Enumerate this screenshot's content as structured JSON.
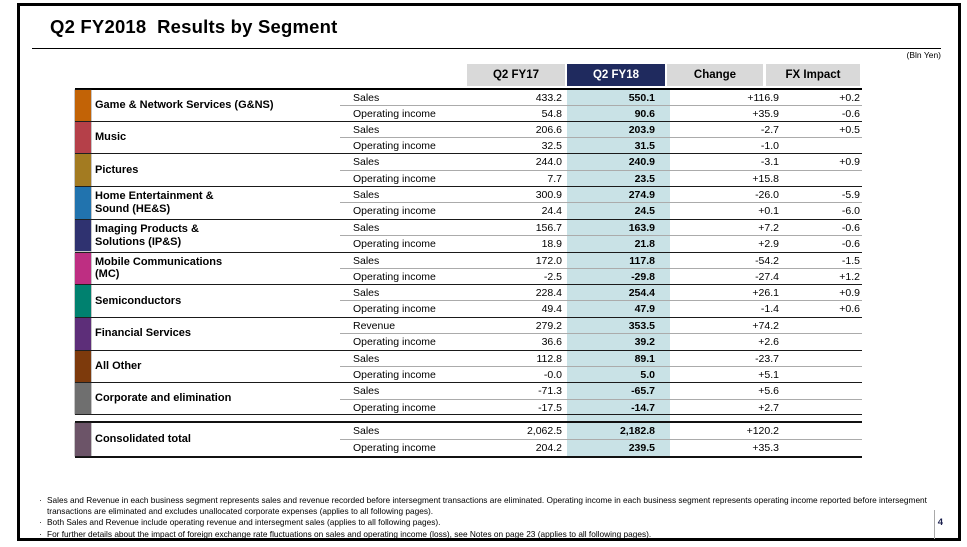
{
  "page": {
    "title": "Q2 FY2018  Results by Segment",
    "unit_label": "(Bln Yen)",
    "page_number": "4",
    "bullet": "·"
  },
  "table": {
    "columns": [
      "Q2 FY17",
      "Q2 FY18",
      "Change",
      "FX Impact"
    ],
    "header_default_color": "#D9D9D9",
    "header_highlight_color": "#1F2A5E",
    "highlight_color": "#C9E2E6",
    "segments": [
      {
        "name": "Game & Network Services (G&NS)",
        "color": "#C26306",
        "rows": [
          {
            "label": "Sales",
            "values": [
              "433.2",
              "550.1",
              "+116.9",
              "+0.2"
            ]
          },
          {
            "label": "Operating income",
            "values": [
              "54.8",
              "90.6",
              "+35.9",
              "-0.6"
            ]
          }
        ]
      },
      {
        "name": "Music",
        "color": "#B54049",
        "rows": [
          {
            "label": "Sales",
            "values": [
              "206.6",
              "203.9",
              "-2.7",
              "+0.5"
            ]
          },
          {
            "label": "Operating income",
            "values": [
              "32.5",
              "31.5",
              "-1.0",
              ""
            ]
          }
        ]
      },
      {
        "name": "Pictures",
        "color": "#A37B21",
        "rows": [
          {
            "label": "Sales",
            "values": [
              "244.0",
              "240.9",
              "-3.1",
              "+0.9"
            ]
          },
          {
            "label": "Operating income",
            "values": [
              "7.7",
              "23.5",
              "+15.8",
              ""
            ]
          }
        ]
      },
      {
        "name": "Home Entertainment &\nSound (HE&S)",
        "color": "#2173AE",
        "rows": [
          {
            "label": "Sales",
            "values": [
              "300.9",
              "274.9",
              "-26.0",
              "-5.9"
            ]
          },
          {
            "label": "Operating income",
            "values": [
              "24.4",
              "24.5",
              "+0.1",
              "-6.0"
            ]
          }
        ]
      },
      {
        "name": "Imaging Products &\nSolutions (IP&S)",
        "color": "#2F3270",
        "rows": [
          {
            "label": "Sales",
            "values": [
              "156.7",
              "163.9",
              "+7.2",
              "-0.6"
            ]
          },
          {
            "label": "Operating income",
            "values": [
              "18.9",
              "21.8",
              "+2.9",
              "-0.6"
            ]
          }
        ]
      },
      {
        "name": "Mobile Communications\n(MC)",
        "color": "#BE2E82",
        "rows": [
          {
            "label": "Sales",
            "values": [
              "172.0",
              "117.8",
              "-54.2",
              "-1.5"
            ]
          },
          {
            "label": "Operating income",
            "values": [
              "-2.5",
              "-29.8",
              "-27.4",
              "+1.2"
            ]
          }
        ]
      },
      {
        "name": "Semiconductors",
        "color": "#00816F",
        "rows": [
          {
            "label": "Sales",
            "values": [
              "228.4",
              "254.4",
              "+26.1",
              "+0.9"
            ]
          },
          {
            "label": "Operating income",
            "values": [
              "49.4",
              "47.9",
              "-1.4",
              "+0.6"
            ]
          }
        ]
      },
      {
        "name": "Financial Services",
        "color": "#5D2E79",
        "rows": [
          {
            "label": "Revenue",
            "values": [
              "279.2",
              "353.5",
              "+74.2",
              ""
            ]
          },
          {
            "label": "Operating income",
            "values": [
              "36.6",
              "39.2",
              "+2.6",
              ""
            ]
          }
        ]
      },
      {
        "name": "All Other",
        "color": "#7D3A0C",
        "rows": [
          {
            "label": "Sales",
            "values": [
              "112.8",
              "89.1",
              "-23.7",
              ""
            ]
          },
          {
            "label": "Operating income",
            "values": [
              "-0.0",
              "5.0",
              "+5.1",
              ""
            ]
          }
        ]
      },
      {
        "name": "Corporate and elimination",
        "color": "#6F6F6F",
        "rows": [
          {
            "label": "Sales",
            "values": [
              "-71.3",
              "-65.7",
              "+5.6",
              ""
            ]
          },
          {
            "label": "Operating income",
            "values": [
              "-17.5",
              "-14.7",
              "+2.7",
              ""
            ]
          }
        ]
      }
    ],
    "total": {
      "name": "Consolidated total",
      "color": "#6C5468",
      "rows": [
        {
          "label": "Sales",
          "values": [
            "2,062.5",
            "2,182.8",
            "+120.2",
            ""
          ]
        },
        {
          "label": "Operating income",
          "values": [
            "204.2",
            "239.5",
            "+35.3",
            ""
          ]
        }
      ]
    }
  },
  "notes": [
    "Sales and Revenue in each business segment represents sales and revenue recorded before intersegment transactions are eliminated. Operating income in each business segment represents operating income reported before intersegment transactions are eliminated and excludes unallocated corporate expenses (applies to all following pages).",
    "Both Sales and Revenue include operating revenue and intersegment sales (applies to all following pages).",
    "For further details about the impact of foreign exchange rate fluctuations on sales and operating income (loss), see Notes on page 23 (applies to all following pages)."
  ]
}
